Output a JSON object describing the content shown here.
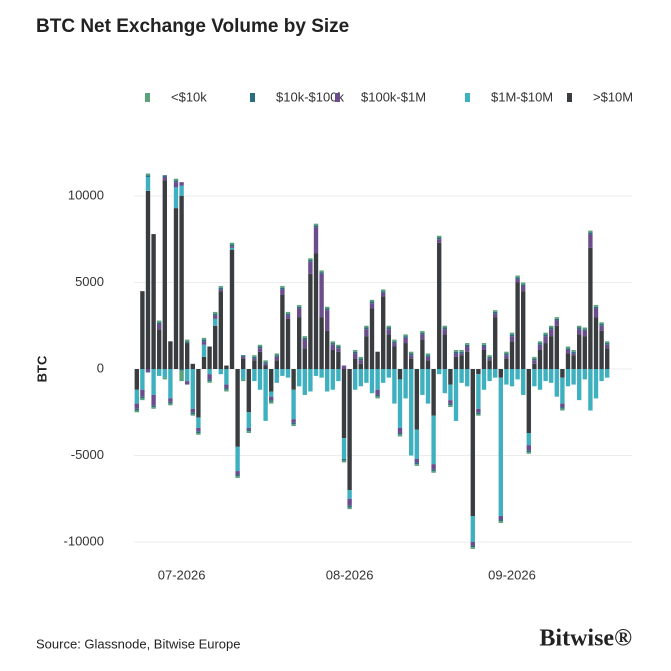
{
  "chart_data": {
    "type": "bar",
    "title": "BTC Net Exchange Volume by Size",
    "ylabel": "BTC",
    "source": "Source: Glassnode, Bitwise Europe",
    "logo": "Bitwise®",
    "stacked": true,
    "grid": true,
    "legend": "top",
    "categories": [
      null,
      null,
      null,
      null,
      null,
      null,
      null,
      null,
      null,
      null,
      null,
      null,
      null,
      null,
      null,
      null,
      null,
      null,
      null,
      null,
      null,
      null,
      null,
      null,
      null,
      null,
      null,
      null,
      null,
      null,
      null,
      null,
      null,
      null,
      null,
      null,
      null,
      null,
      null,
      null,
      null,
      null,
      null,
      null,
      null,
      null,
      null,
      null,
      null,
      null,
      null,
      null,
      null,
      null,
      null,
      null,
      null,
      null,
      null,
      null,
      null,
      null,
      null,
      null,
      null,
      null,
      null,
      null,
      null,
      null,
      null,
      null,
      null,
      null,
      null,
      null,
      null,
      null,
      null,
      null,
      null,
      null,
      null,
      null,
      null
    ],
    "xticks": [
      {
        "value": 8,
        "label": "07-2026"
      },
      {
        "value": 38,
        "label": "08-2026"
      },
      {
        "value": 67,
        "label": "09-2026"
      }
    ],
    "ylim": [
      -10300,
      11200
    ],
    "yticks": [
      10000,
      5000,
      0,
      -5000,
      -10000
    ],
    "series": [
      {
        "name": "<$10k",
        "color": "#5aa37a",
        "values": [
          -100,
          -100,
          100,
          -100,
          100,
          -100,
          -100,
          100,
          -600,
          100,
          -100,
          -100,
          100,
          -100,
          100,
          100,
          -100,
          100,
          -100,
          -100,
          -100,
          100,
          100,
          100,
          -100,
          100,
          100,
          100,
          -100,
          100,
          100,
          100,
          100,
          100,
          100,
          100,
          100,
          -100,
          -100,
          100,
          100,
          100,
          100,
          -100,
          100,
          100,
          100,
          -100,
          100,
          100,
          -100,
          100,
          100,
          -100,
          100,
          100,
          -100,
          100,
          100,
          100,
          -100,
          -100,
          100,
          100,
          100,
          -100,
          100,
          100,
          100,
          100,
          -100,
          100,
          100,
          100,
          100,
          100,
          -100,
          100,
          100,
          100,
          100,
          100,
          100,
          100,
          100
        ]
      },
      {
        "name": "$10k-$100k",
        "color": "#2c6e7f",
        "values": [
          -100,
          -100,
          100,
          -100,
          100,
          100,
          -100,
          100,
          -100,
          100,
          -100,
          -100,
          100,
          -100,
          100,
          100,
          -100,
          100,
          -100,
          100,
          -100,
          100,
          100,
          100,
          -100,
          100,
          100,
          100,
          -100,
          100,
          100,
          100,
          100,
          100,
          100,
          100,
          100,
          -100,
          -100,
          100,
          100,
          100,
          100,
          -100,
          100,
          100,
          100,
          -100,
          100,
          100,
          -100,
          100,
          100,
          -100,
          100,
          100,
          -100,
          100,
          100,
          100,
          -100,
          -100,
          100,
          100,
          100,
          -100,
          100,
          100,
          100,
          100,
          -100,
          100,
          100,
          100,
          100,
          100,
          -100,
          100,
          100,
          100,
          100,
          100,
          100,
          100,
          100
        ]
      },
      {
        "name": "$100k-$1M",
        "color": "#6b4c8c",
        "values": [
          -300,
          -400,
          -200,
          -600,
          300,
          200,
          -200,
          300,
          200,
          -200,
          -200,
          -200,
          200,
          -300,
          200,
          100,
          -200,
          100,
          -200,
          100,
          -100,
          100,
          200,
          100,
          -200,
          200,
          300,
          200,
          -200,
          500,
          500,
          700,
          1500,
          2500,
          1200,
          300,
          200,
          200,
          -400,
          300,
          200,
          400,
          300,
          -300,
          200,
          300,
          200,
          -300,
          300,
          200,
          -200,
          300,
          200,
          -300,
          200,
          300,
          -200,
          200,
          100,
          300,
          -200,
          -200,
          200,
          100,
          200,
          -200,
          200,
          300,
          200,
          300,
          -300,
          200,
          300,
          400,
          400,
          300,
          -200,
          200,
          100,
          300,
          300,
          800,
          500,
          300,
          200
        ]
      },
      {
        "name": "$1M-$10M",
        "color": "#3fb0bf",
        "values": [
          -800,
          -1200,
          800,
          -1500,
          -400,
          -500,
          -1700,
          1200,
          600,
          -700,
          -2300,
          -600,
          700,
          -300,
          400,
          -300,
          -900,
          100,
          -1400,
          -600,
          -900,
          -700,
          -1200,
          -3000,
          -300,
          -800,
          -400,
          -500,
          -1700,
          -1000,
          -1500,
          -1300,
          -400,
          -500,
          -1300,
          -1200,
          -700,
          -1200,
          -500,
          -1200,
          -1000,
          -800,
          -1400,
          -1200,
          -800,
          -500,
          -2000,
          -2800,
          -1700,
          -5000,
          -1700,
          -1500,
          -2000,
          -2800,
          -300,
          -1400,
          -900,
          -3000,
          -800,
          -1000,
          -1500,
          -2000,
          -1200,
          -700,
          -500,
          -8000,
          -900,
          -1000,
          -600,
          -1500,
          -700,
          -1000,
          -1200,
          -700,
          -800,
          -1600,
          -1500,
          -1000,
          -900,
          -1800,
          -600,
          -2400,
          -1700,
          -700,
          -500
        ]
      },
      {
        "name": ">$10M",
        "color": "#3a3d40",
        "values": [
          -1200,
          4500,
          10300,
          7800,
          2300,
          10900,
          1600,
          9300,
          10000,
          1500,
          300,
          -2800,
          700,
          1300,
          2500,
          4500,
          200,
          6900,
          -4500,
          600,
          -2500,
          500,
          1000,
          200,
          -1300,
          500,
          4300,
          2900,
          -1200,
          3000,
          1200,
          5500,
          6700,
          3000,
          2200,
          1100,
          1000,
          -4000,
          -7000,
          600,
          300,
          1900,
          3500,
          1000,
          4200,
          2000,
          1300,
          -600,
          1500,
          600,
          -3500,
          1700,
          500,
          -2700,
          7300,
          2000,
          -900,
          700,
          800,
          1000,
          -8500,
          -300,
          1100,
          500,
          3000,
          -500,
          600,
          1600,
          5000,
          4500,
          -3700,
          300,
          1100,
          1500,
          1900,
          2500,
          -500,
          900,
          800,
          2000,
          1900,
          7000,
          3000,
          2200,
          1200
        ]
      }
    ]
  }
}
